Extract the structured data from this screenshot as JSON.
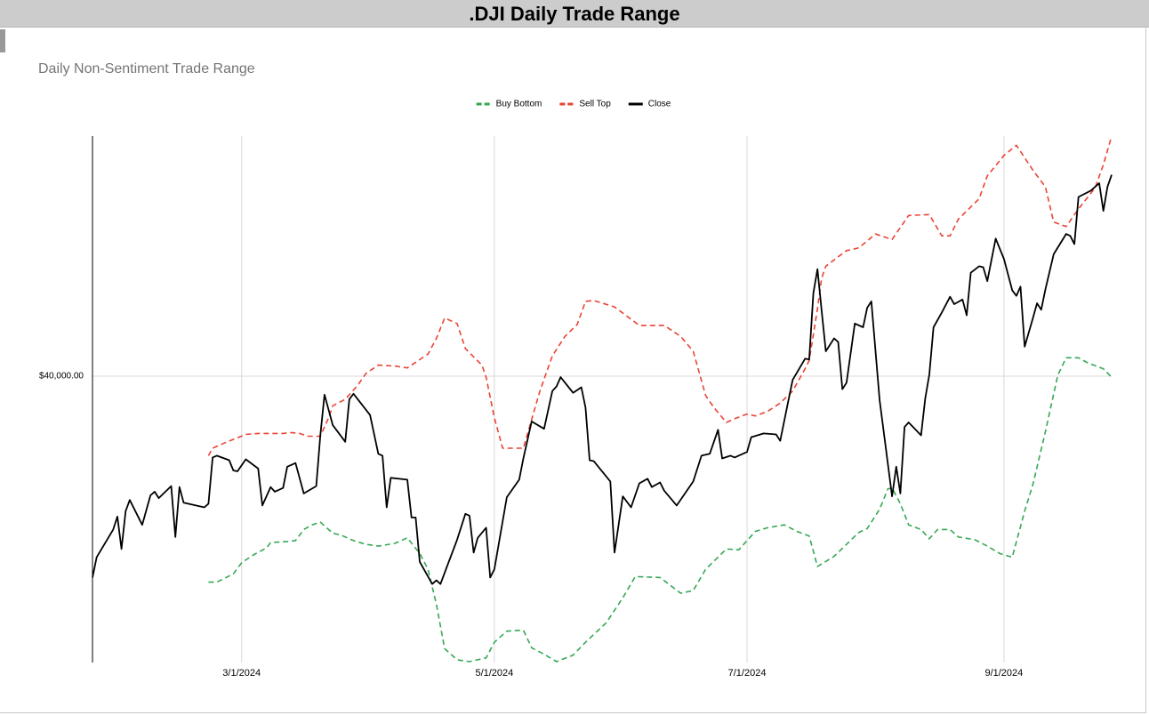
{
  "header": {
    "title": ".DJI Daily Trade Range"
  },
  "chart_data": {
    "type": "line",
    "title": "Daily Non-Sentiment Trade Range",
    "legend": "top",
    "grid": true,
    "xlim": [
      "1/25/2024",
      "9/27/2024"
    ],
    "xticks": [
      "3/1/2024",
      "5/1/2024",
      "7/1/2024",
      "9/1/2024"
    ],
    "ylim": [
      36900,
      42600
    ],
    "yticks": [
      {
        "value": 40000,
        "label": "$40,000.00"
      }
    ],
    "series": [
      {
        "name": "Buy Bottom",
        "color": "#34a853",
        "dash": true,
        "x": [
          "2/22/2024",
          "2/24/2024",
          "2/28/2024",
          "3/1/2024",
          "3/4/2024",
          "3/7/2024",
          "3/8/2024",
          "3/12/2024",
          "3/14/2024",
          "3/16/2024",
          "3/18/2024",
          "3/20/2024",
          "3/23/2024",
          "3/25/2024",
          "3/28/2024",
          "3/31/2024",
          "4/3/2024",
          "4/7/2024",
          "4/10/2024",
          "4/13/2024",
          "4/15/2024",
          "4/17/2024",
          "4/19/2024",
          "4/22/2024",
          "4/25/2024",
          "4/29/2024",
          "5/1/2024",
          "5/4/2024",
          "5/8/2024",
          "5/10/2024",
          "5/13/2024",
          "5/16/2024",
          "5/20/2024",
          "5/23/2024",
          "5/28/2024",
          "6/1/2024",
          "6/4/2024",
          "6/10/2024",
          "6/15/2024",
          "6/18/2024",
          "6/21/2024",
          "6/26/2024",
          "6/29/2024",
          "7/3/2024",
          "7/6/2024",
          "7/10/2024",
          "7/13/2024",
          "7/16/2024",
          "7/18/2024",
          "7/22/2024",
          "7/28/2024",
          "7/30/2024",
          "8/2/2024",
          "8/4/2024",
          "8/5/2024",
          "8/7/2024",
          "8/9/2024",
          "8/12/2024",
          "8/14/2024",
          "8/16/2024",
          "8/19/2024",
          "8/21/2024",
          "8/25/2024",
          "8/28/2024",
          "8/31/2024",
          "9/3/2024",
          "9/6/2024",
          "9/8/2024",
          "9/11/2024",
          "9/14/2024",
          "9/16/2024",
          "9/19/2024",
          "9/21/2024",
          "9/25/2024",
          "9/27/2024"
        ],
        "values": [
          37770,
          37770,
          37860,
          37980,
          38070,
          38140,
          38200,
          38210,
          38220,
          38340,
          38390,
          38420,
          38300,
          38280,
          38220,
          38180,
          38160,
          38190,
          38250,
          38080,
          37910,
          37530,
          37050,
          36930,
          36910,
          36950,
          37120,
          37240,
          37250,
          37060,
          36990,
          36910,
          36980,
          37120,
          37330,
          37600,
          37830,
          37820,
          37650,
          37680,
          37910,
          38130,
          38120,
          38320,
          38360,
          38390,
          38320,
          38270,
          37940,
          38050,
          38310,
          38350,
          38560,
          38780,
          38790,
          38620,
          38390,
          38340,
          38240,
          38340,
          38340,
          38260,
          38230,
          38160,
          38080,
          38040,
          38540,
          38830,
          39400,
          40010,
          40200,
          40200,
          40150,
          40080,
          39990
        ]
      },
      {
        "name": "Sell Top",
        "color": "#ea4335",
        "dash": true,
        "x": [
          "2/22/2024",
          "2/23/2024",
          "2/26/2024",
          "3/2/2024",
          "3/5/2024",
          "3/7/2024",
          "3/11/2024",
          "3/13/2024",
          "3/15/2024",
          "3/17/2024",
          "3/20/2024",
          "3/22/2024",
          "3/23/2024",
          "3/26/2024",
          "3/29/2024",
          "3/31/2024",
          "4/3/2024",
          "4/7/2024",
          "4/10/2024",
          "4/15/2024",
          "4/17/2024",
          "4/19/2024",
          "4/22/2024",
          "4/24/2024",
          "4/28/2024",
          "4/29/2024",
          "5/1/2024",
          "5/3/2024",
          "5/8/2024",
          "5/12/2024",
          "5/15/2024",
          "5/18/2024",
          "5/21/2024",
          "5/23/2024",
          "5/25/2024",
          "5/30/2024",
          "6/5/2024",
          "6/11/2024",
          "6/15/2024",
          "6/18/2024",
          "6/21/2024",
          "6/23/2024",
          "6/26/2024",
          "6/28/2024",
          "7/1/2024",
          "7/3/2024",
          "7/6/2024",
          "7/9/2024",
          "7/12/2024",
          "7/15/2024",
          "7/16/2024",
          "7/18/2024",
          "7/19/2024",
          "7/20/2024",
          "7/22/2024",
          "7/25/2024",
          "7/28/2024",
          "8/1/2024",
          "8/5/2024",
          "8/9/2024",
          "8/14/2024",
          "8/17/2024",
          "8/19/2024",
          "8/21/2024",
          "8/26/2024",
          "8/28/2024",
          "9/1/2024",
          "9/4/2024",
          "9/8/2024",
          "9/11/2024",
          "9/13/2024",
          "9/16/2024",
          "9/19/2024",
          "9/23/2024",
          "9/25/2024",
          "9/27/2024"
        ],
        "values": [
          39140,
          39220,
          39280,
          39370,
          39380,
          39380,
          39380,
          39390,
          39380,
          39350,
          39350,
          39550,
          39680,
          39750,
          39900,
          40030,
          40120,
          40110,
          40090,
          40240,
          40410,
          40630,
          40570,
          40300,
          40120,
          39990,
          39550,
          39220,
          39220,
          39840,
          40220,
          40430,
          40560,
          40810,
          40820,
          40750,
          40550,
          40550,
          40430,
          40270,
          39790,
          39660,
          39500,
          39540,
          39590,
          39570,
          39620,
          39710,
          39840,
          40080,
          40170,
          40730,
          41060,
          41190,
          41260,
          41360,
          41390,
          41540,
          41480,
          41740,
          41750,
          41520,
          41520,
          41700,
          41920,
          42170,
          42390,
          42500,
          42230,
          42050,
          41670,
          41620,
          41810,
          42040,
          42290,
          42600
        ]
      },
      {
        "name": "Close",
        "color": "#000000",
        "dash": false,
        "x": [
          "1/25/2024",
          "1/26/2024",
          "1/30/2024",
          "1/31/2024",
          "2/1/2024",
          "2/2/2024",
          "2/3/2024",
          "2/6/2024",
          "2/8/2024",
          "2/9/2024",
          "2/10/2024",
          "2/13/2024",
          "2/14/2024",
          "2/15/2024",
          "2/16/2024",
          "2/21/2024",
          "2/22/2024",
          "2/23/2024",
          "2/24/2024",
          "2/27/2024",
          "2/28/2024",
          "2/29/2024",
          "3/2/2024",
          "3/5/2024",
          "3/6/2024",
          "3/8/2024",
          "3/9/2024",
          "3/11/2024",
          "3/12/2024",
          "3/14/2024",
          "3/16/2024",
          "3/19/2024",
          "3/20/2024",
          "3/21/2024",
          "3/23/2024",
          "3/26/2024",
          "3/27/2024",
          "3/28/2024",
          "4/1/2024",
          "4/3/2024",
          "4/4/2024",
          "4/5/2024",
          "4/6/2024",
          "4/10/2024",
          "4/11/2024",
          "4/12/2024",
          "4/13/2024",
          "4/16/2024",
          "4/17/2024",
          "4/18/2024",
          "4/20/2024",
          "4/22/2024",
          "4/24/2024",
          "4/25/2024",
          "4/26/2024",
          "4/27/2024",
          "4/29/2024",
          "4/30/2024",
          "5/1/2024",
          "5/4/2024",
          "5/7/2024",
          "5/8/2024",
          "5/10/2024",
          "5/13/2024",
          "5/15/2024",
          "5/16/2024",
          "5/17/2024",
          "5/20/2024",
          "5/22/2024",
          "5/23/2024",
          "5/24/2024",
          "5/25/2024",
          "5/29/2024",
          "5/30/2024",
          "6/1/2024",
          "6/3/2024",
          "6/5/2024",
          "6/7/2024",
          "6/8/2024",
          "6/10/2024",
          "6/11/2024",
          "6/14/2024",
          "6/18/2024",
          "6/20/2024",
          "6/22/2024",
          "6/24/2024",
          "6/25/2024",
          "6/27/2024",
          "6/28/2024",
          "7/1/2024",
          "7/2/2024",
          "7/5/2024",
          "7/8/2024",
          "7/9/2024",
          "7/11/2024",
          "7/12/2024",
          "7/15/2024",
          "7/16/2024",
          "7/17/2024",
          "7/18/2024",
          "7/19/2024",
          "7/20/2024",
          "7/22/2024",
          "7/23/2024",
          "7/24/2024",
          "7/25/2024",
          "7/27/2024",
          "7/29/2024",
          "7/30/2024",
          "7/31/2024",
          "8/2/2024",
          "8/5/2024",
          "8/6/2024",
          "8/7/2024",
          "8/8/2024",
          "8/9/2024",
          "8/12/2024",
          "8/13/2024",
          "8/14/2024",
          "8/15/2024",
          "8/17/2024",
          "8/19/2024",
          "8/20/2024",
          "8/22/2024",
          "8/23/2024",
          "8/24/2024",
          "8/26/2024",
          "8/27/2024",
          "8/28/2024",
          "8/30/2024",
          "9/1/2024",
          "9/3/2024",
          "9/4/2024",
          "9/5/2024",
          "9/6/2024",
          "9/8/2024",
          "9/9/2024",
          "9/10/2024",
          "9/11/2024",
          "9/13/2024",
          "9/16/2024",
          "9/17/2024",
          "9/18/2024",
          "9/19/2024",
          "9/22/2024",
          "9/24/2024",
          "9/25/2024",
          "9/26/2024",
          "9/27/2024"
        ],
        "values": [
          37820,
          38040,
          38340,
          38480,
          38130,
          38540,
          38660,
          38390,
          38710,
          38750,
          38680,
          38810,
          38260,
          38800,
          38630,
          38580,
          38620,
          39120,
          39140,
          39090,
          38980,
          38970,
          39100,
          39000,
          38600,
          38800,
          38750,
          38790,
          39020,
          39060,
          38730,
          38810,
          39360,
          39800,
          39470,
          39290,
          39750,
          39810,
          39580,
          39160,
          39140,
          38580,
          38900,
          38880,
          38470,
          38470,
          37990,
          37750,
          37790,
          37750,
          37990,
          38230,
          38510,
          38490,
          38090,
          38250,
          38360,
          37820,
          37910,
          38690,
          38880,
          39110,
          39510,
          39430,
          39840,
          39890,
          39990,
          39820,
          39880,
          39660,
          39090,
          39080,
          38860,
          38090,
          38700,
          38580,
          38840,
          38890,
          38800,
          38850,
          38760,
          38600,
          38860,
          39140,
          39160,
          39420,
          39110,
          39140,
          39120,
          39180,
          39340,
          39380,
          39370,
          39300,
          39740,
          39960,
          40190,
          40180,
          40900,
          41160,
          40710,
          40270,
          40410,
          40370,
          39860,
          39930,
          40570,
          40530,
          40740,
          40810,
          39740,
          38700,
          39020,
          38730,
          39450,
          39500,
          39360,
          39760,
          40020,
          40530,
          40690,
          40860,
          40780,
          40830,
          40660,
          41120,
          41190,
          41180,
          41030,
          41490,
          41270,
          40930,
          40870,
          40970,
          40320,
          40630,
          40790,
          40720,
          40940,
          41320,
          41540,
          41520,
          41430,
          41940,
          42010,
          42090,
          41790,
          42050,
          42180
        ]
      }
    ]
  }
}
